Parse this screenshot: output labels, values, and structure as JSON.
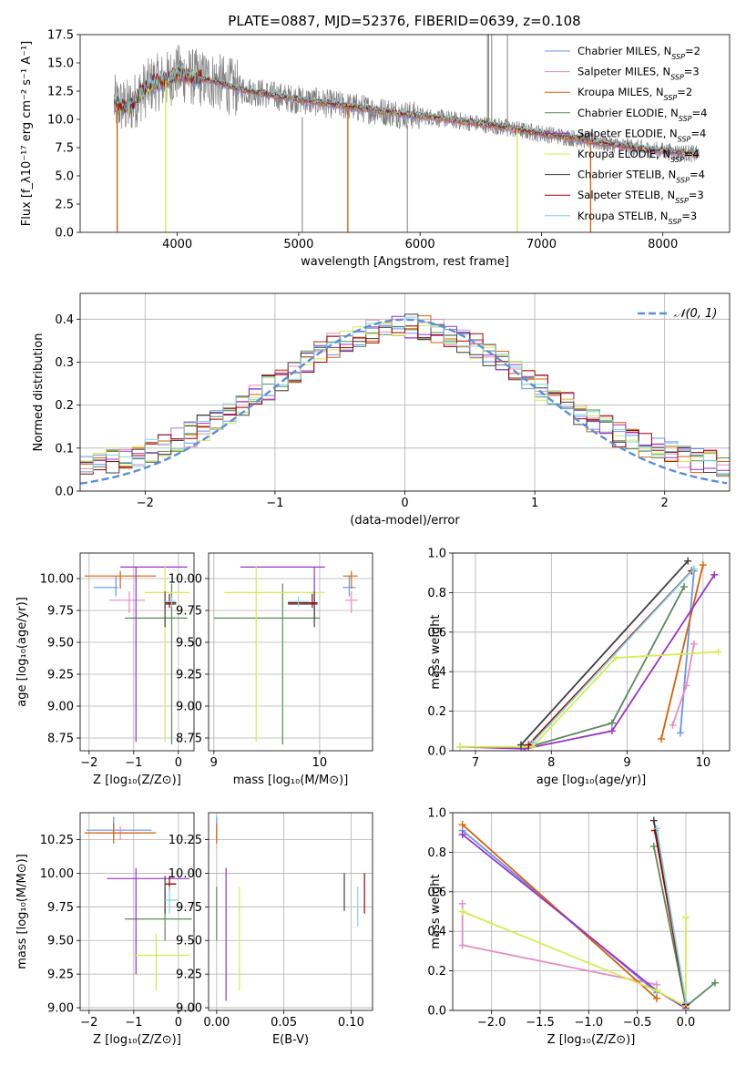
{
  "figure_title": "PLATE=0887, MJD=52376, FIBERID=0639, z=0.108",
  "colors": {
    "Chabrier MILES": "#6495ed",
    "Salpeter MILES": "#e78ac3",
    "Kroupa MILES": "#d95f02",
    "Chabrier ELODIE": "#5a8a5a",
    "Salpeter ELODIE": "#9932cc",
    "Kroupa ELODIE": "#d4ed4c",
    "Chabrier STELIB": "#404040",
    "Salpeter STELIB": "#a00000",
    "Kroupa STELIB": "#7fd6dc",
    "data": "#808080",
    "gauss": "#5b8fd9"
  },
  "legend": [
    {
      "label": "Chabrier MILES, N",
      "sub": "SSP",
      "tail": "=2",
      "series": "Chabrier MILES"
    },
    {
      "label": "Salpeter MILES, N",
      "sub": "SSP",
      "tail": "=3",
      "series": "Salpeter MILES"
    },
    {
      "label": "Kroupa MILES, N",
      "sub": "SSP",
      "tail": "=2",
      "series": "Kroupa MILES"
    },
    {
      "label": "Chabrier ELODIE, N",
      "sub": "SSP",
      "tail": "=4",
      "series": "Chabrier ELODIE"
    },
    {
      "label": "Salpeter ELODIE, N",
      "sub": "SSP",
      "tail": "=4",
      "series": "Salpeter ELODIE"
    },
    {
      "label": "Kroupa ELODIE, N",
      "sub": "SSP",
      "tail": "=4",
      "series": "Kroupa ELODIE"
    },
    {
      "label": "Chabrier STELIB, N",
      "sub": "SSP",
      "tail": "=4",
      "series": "Chabrier STELIB"
    },
    {
      "label": "Salpeter STELIB, N",
      "sub": "SSP",
      "tail": "=3",
      "series": "Salpeter STELIB"
    },
    {
      "label": "Kroupa STELIB, N",
      "sub": "SSP",
      "tail": "=3",
      "series": "Kroupa STELIB"
    }
  ],
  "chart_data": [
    {
      "type": "line",
      "panel": "spectrum",
      "xlabel": "wavelength [Angstrom, rest frame]",
      "ylabel": "Flux [f_λ10⁻¹⁷ erg cm⁻² s⁻¹ A⁻¹]",
      "xlim": [
        3200,
        8550
      ],
      "ylim": [
        0,
        17.5
      ],
      "xticks": [
        4000,
        5000,
        6000,
        7000,
        8000
      ],
      "yticks": [
        0.0,
        2.5,
        5.0,
        7.5,
        10.0,
        12.5,
        15.0,
        17.5
      ],
      "continuum": {
        "x": [
          3480,
          3600,
          3700,
          3800,
          3900,
          4000,
          4100,
          4300,
          4500,
          4700,
          4900,
          5100,
          5300,
          5500,
          5700,
          5900,
          6100,
          6300,
          6500,
          6700,
          6900,
          7100,
          7300,
          7500,
          7700,
          7900,
          8100,
          8300
        ],
        "y": [
          11.4,
          11.0,
          12.3,
          13.2,
          13.4,
          14.1,
          13.8,
          13.4,
          12.7,
          12.3,
          11.9,
          11.6,
          11.3,
          11.0,
          10.7,
          10.4,
          10.2,
          9.9,
          9.6,
          9.3,
          8.9,
          8.6,
          8.3,
          7.9,
          7.6,
          7.3,
          7.1,
          6.9
        ]
      },
      "data_spikes": [
        {
          "x": 3505,
          "y0": 0,
          "y1": 10.5
        },
        {
          "x": 5030,
          "y0": 0,
          "y1": 10.2
        },
        {
          "x": 5895,
          "y0": 0,
          "y1": 9.5
        },
        {
          "x": 6555,
          "y0": 9.5,
          "y1": 17.5
        },
        {
          "x": 6565,
          "y0": 9.5,
          "y1": 17.5
        },
        {
          "x": 6590,
          "y0": 9.5,
          "y1": 17.5
        },
        {
          "x": 6720,
          "y0": 8.5,
          "y1": 17.5
        }
      ],
      "model_dips": [
        {
          "x": 3505,
          "y": 0.0,
          "series": "Kroupa MILES"
        },
        {
          "x": 3905,
          "y": 0.0,
          "series": "Kroupa ELODIE"
        },
        {
          "x": 5405,
          "y": 0.0,
          "series": "Kroupa MILES"
        },
        {
          "x": 6800,
          "y": 0.0,
          "series": "Kroupa ELODIE"
        },
        {
          "x": 7405,
          "y": 0.0,
          "series": "Kroupa MILES"
        }
      ]
    },
    {
      "type": "bar",
      "panel": "residual-histogram",
      "xlabel": "(data-model)/error",
      "ylabel": "Normed distribution",
      "xlim": [
        -2.5,
        2.5
      ],
      "ylim": [
        0,
        0.46
      ],
      "xticks": [
        -2,
        -1,
        0,
        1,
        2
      ],
      "yticks": [
        0.0,
        0.1,
        0.2,
        0.3,
        0.4
      ],
      "gauss_label": "𝒩(0, 1)"
    },
    {
      "type": "scatter",
      "panel": "age-vs-Z",
      "xlabel": "Z [log₁₀(Z/Z⊙)]",
      "ylabel": "age  [log₁₀(age/yr)]",
      "xlim": [
        -2.2,
        0.35
      ],
      "ylim": [
        8.65,
        10.2
      ],
      "xticks": [
        -2,
        -1,
        0
      ],
      "yticks": [
        8.75,
        9.0,
        9.25,
        9.5,
        9.75,
        10.0
      ],
      "crosses": [
        {
          "series": "Chabrier MILES",
          "x": -1.4,
          "xe": [
            -1.9,
            -1.35
          ],
          "y": 9.93,
          "ye": [
            9.86,
            10.02
          ]
        },
        {
          "series": "Salpeter MILES",
          "x": -1.1,
          "xe": [
            -1.55,
            -0.75
          ],
          "y": 9.83,
          "ye": [
            9.73,
            9.9
          ]
        },
        {
          "series": "Kroupa MILES",
          "x": -1.3,
          "xe": [
            -2.1,
            -0.5
          ],
          "y": 10.02,
          "ye": [
            9.92,
            10.06
          ]
        },
        {
          "series": "Chabrier ELODIE",
          "x": -0.15,
          "xe": [
            -1.2,
            0.2
          ],
          "y": 9.69,
          "ye": [
            8.7,
            9.96
          ]
        },
        {
          "series": "Salpeter ELODIE",
          "x": -0.95,
          "xe": [
            -1.3,
            0.2
          ],
          "y": 10.09,
          "ye": [
            8.72,
            10.09
          ]
        },
        {
          "series": "Kroupa ELODIE",
          "x": -0.3,
          "xe": [
            -0.75,
            0.25
          ],
          "y": 9.89,
          "ye": [
            8.72,
            10.1
          ]
        },
        {
          "series": "Chabrier STELIB",
          "x": -0.3,
          "xe": [
            -0.3,
            -0.05
          ],
          "y": 9.8,
          "ye": [
            9.62,
            9.9
          ]
        },
        {
          "series": "Salpeter STELIB",
          "x": -0.2,
          "xe": [
            -0.3,
            -0.05
          ],
          "y": 9.81,
          "ye": [
            9.77,
            9.88
          ]
        },
        {
          "series": "Kroupa STELIB",
          "x": -0.15,
          "xe": [
            -0.3,
            -0.05
          ],
          "y": 9.82,
          "ye": [
            9.78,
            9.86
          ]
        }
      ]
    },
    {
      "type": "scatter",
      "panel": "age-vs-mass",
      "xlabel": "mass [log₁₀(M/M⊙)]",
      "ylabel": "",
      "xlim": [
        8.95,
        10.5
      ],
      "ylim": [
        8.65,
        10.2
      ],
      "xticks": [
        9,
        10
      ],
      "yticks": [
        8.75,
        9.0,
        9.25,
        9.5,
        9.75,
        10.0
      ],
      "crosses": [
        {
          "series": "Chabrier MILES",
          "x": 10.28,
          "xe": [
            10.22,
            10.34
          ],
          "y": 9.93,
          "ye": [
            9.86,
            10.02
          ]
        },
        {
          "series": "Salpeter MILES",
          "x": 10.3,
          "xe": [
            10.24,
            10.36
          ],
          "y": 9.83,
          "ye": [
            9.73,
            9.9
          ]
        },
        {
          "series": "Kroupa MILES",
          "x": 10.3,
          "xe": [
            10.22,
            10.36
          ],
          "y": 10.02,
          "ye": [
            9.92,
            10.06
          ]
        },
        {
          "series": "Chabrier ELODIE",
          "x": 9.65,
          "xe": [
            9.0,
            10.0
          ],
          "y": 9.69,
          "ye": [
            8.7,
            9.96
          ]
        },
        {
          "series": "Salpeter ELODIE",
          "x": 9.95,
          "xe": [
            9.25,
            10.05
          ],
          "y": 10.09,
          "ye": [
            9.7,
            10.09
          ]
        },
        {
          "series": "Kroupa ELODIE",
          "x": 9.4,
          "xe": [
            9.1,
            10.05
          ],
          "y": 9.89,
          "ye": [
            8.72,
            10.1
          ]
        },
        {
          "series": "Chabrier STELIB",
          "x": 9.95,
          "xe": [
            9.7,
            9.98
          ],
          "y": 9.8,
          "ye": [
            9.62,
            9.9
          ]
        },
        {
          "series": "Salpeter STELIB",
          "x": 9.93,
          "xe": [
            9.7,
            9.98
          ],
          "y": 9.81,
          "ye": [
            9.77,
            9.88
          ]
        },
        {
          "series": "Kroupa STELIB",
          "x": 9.8,
          "xe": [
            9.7,
            9.9
          ],
          "y": 9.82,
          "ye": [
            9.78,
            9.86
          ]
        }
      ]
    },
    {
      "type": "line",
      "panel": "mass-weight-vs-age",
      "xlabel": "age  [log₁₀(age/yr)]",
      "ylabel": "mass weight",
      "xlim": [
        6.7,
        10.35
      ],
      "ylim": [
        0,
        1.0
      ],
      "xticks": [
        7,
        8,
        9,
        10
      ],
      "yticks": [
        0.0,
        0.2,
        0.4,
        0.6,
        0.8,
        1.0
      ],
      "series": [
        {
          "name": "Chabrier MILES",
          "x": [
            9.7,
            9.88
          ],
          "y": [
            0.09,
            0.91
          ]
        },
        {
          "name": "Salpeter MILES",
          "x": [
            9.6,
            9.78,
            9.88
          ],
          "y": [
            0.13,
            0.33,
            0.54
          ]
        },
        {
          "name": "Kroupa MILES",
          "x": [
            9.45,
            10.0
          ],
          "y": [
            0.06,
            0.94
          ]
        },
        {
          "name": "Chabrier ELODIE",
          "x": [
            7.6,
            7.7,
            8.8,
            9.75
          ],
          "y": [
            0.02,
            0.02,
            0.14,
            0.83
          ]
        },
        {
          "name": "Salpeter ELODIE",
          "x": [
            6.8,
            7.65,
            8.8,
            10.15
          ],
          "y": [
            0.02,
            0.01,
            0.1,
            0.89
          ]
        },
        {
          "name": "Kroupa ELODIE",
          "x": [
            6.8,
            7.75,
            8.85,
            10.2
          ],
          "y": [
            0.02,
            0.02,
            0.47,
            0.5
          ]
        },
        {
          "name": "Chabrier STELIB",
          "x": [
            7.6,
            9.8
          ],
          "y": [
            0.03,
            0.96
          ]
        },
        {
          "name": "Salpeter STELIB",
          "x": [
            7.7,
            9.85
          ],
          "y": [
            0.03,
            0.91
          ]
        },
        {
          "name": "Kroupa STELIB",
          "x": [
            7.75,
            9.88
          ],
          "y": [
            0.04,
            0.92
          ]
        }
      ]
    },
    {
      "type": "scatter",
      "panel": "mass-vs-Z",
      "xlabel": "Z [log₁₀(Z/Z⊙)]",
      "ylabel": "mass [log₁₀(M/M⊙)]",
      "xlim": [
        -2.2,
        0.35
      ],
      "ylim": [
        8.98,
        10.45
      ],
      "xticks": [
        -2,
        -1,
        0
      ],
      "yticks": [
        9.0,
        9.25,
        9.5,
        9.75,
        10.0,
        10.25
      ],
      "crosses": [
        {
          "series": "Chabrier MILES",
          "x": -1.45,
          "xe": [
            -2.05,
            -0.6
          ],
          "y": 10.32,
          "ye": [
            10.26,
            10.42
          ]
        },
        {
          "series": "Salpeter MILES",
          "x": -1.3,
          "xe": [
            -1.85,
            -0.85
          ],
          "y": 10.3,
          "ye": [
            10.25,
            10.35
          ]
        },
        {
          "series": "Kroupa MILES",
          "x": -1.45,
          "xe": [
            -2.1,
            -0.5
          ],
          "y": 10.3,
          "ye": [
            10.22,
            10.37
          ]
        },
        {
          "series": "Chabrier ELODIE",
          "x": -0.3,
          "xe": [
            -1.2,
            0.3
          ],
          "y": 9.66,
          "ye": [
            9.5,
            9.9
          ]
        },
        {
          "series": "Salpeter ELODIE",
          "x": -0.95,
          "xe": [
            -1.6,
            0.25
          ],
          "y": 9.96,
          "ye": [
            9.25,
            10.04
          ]
        },
        {
          "series": "Kroupa ELODIE",
          "x": -0.5,
          "xe": [
            -1.0,
            0.25
          ],
          "y": 9.39,
          "ye": [
            9.13,
            9.55
          ]
        },
        {
          "series": "Chabrier STELIB",
          "x": -0.3,
          "xe": [
            -0.3,
            -0.05
          ],
          "y": 9.92,
          "ye": [
            9.7,
            9.98
          ]
        },
        {
          "series": "Salpeter STELIB",
          "x": -0.2,
          "xe": [
            -0.3,
            -0.05
          ],
          "y": 9.92,
          "ye": [
            9.87,
            9.98
          ]
        },
        {
          "series": "Kroupa STELIB",
          "x": -0.2,
          "xe": [
            -0.3,
            0.0
          ],
          "y": 9.8,
          "ye": [
            9.7,
            9.9
          ]
        }
      ]
    },
    {
      "type": "scatter",
      "panel": "mass-vs-EBV",
      "xlabel": "E(B-V)",
      "ylabel": "",
      "xlim": [
        -0.006,
        0.116
      ],
      "ylim": [
        8.98,
        10.45
      ],
      "xticks": [
        0.0,
        0.05,
        0.1
      ],
      "yticks": [
        9.0,
        9.25,
        9.5,
        9.75,
        10.0,
        10.25
      ],
      "crosses": [
        {
          "series": "Chabrier MILES",
          "x": 0.0,
          "xe": [
            0.0,
            0.0
          ],
          "y": 10.32,
          "ye": [
            10.26,
            10.42
          ]
        },
        {
          "series": "Salpeter MILES",
          "x": 0.0,
          "xe": [
            0.0,
            0.0
          ],
          "y": 10.3,
          "ye": [
            10.25,
            10.35
          ]
        },
        {
          "series": "Kroupa MILES",
          "x": 0.0,
          "xe": [
            0.0,
            0.0
          ],
          "y": 10.3,
          "ye": [
            10.22,
            10.37
          ]
        },
        {
          "series": "Chabrier ELODIE",
          "x": 0.0,
          "xe": [
            0.0,
            0.0
          ],
          "y": 9.66,
          "ye": [
            9.5,
            9.9
          ]
        },
        {
          "series": "Salpeter ELODIE",
          "x": 0.007,
          "xe": [
            0.007,
            0.007
          ],
          "y": 9.96,
          "ye": [
            9.05,
            10.04
          ]
        },
        {
          "series": "Kroupa ELODIE",
          "x": 0.017,
          "xe": [
            0.017,
            0.017
          ],
          "y": 9.5,
          "ye": [
            9.13,
            9.9
          ]
        },
        {
          "series": "Chabrier STELIB",
          "x": 0.095,
          "xe": [
            0.095,
            0.095
          ],
          "y": 9.92,
          "ye": [
            9.72,
            10.0
          ]
        },
        {
          "series": "Salpeter STELIB",
          "x": 0.11,
          "xe": [
            0.11,
            0.11
          ],
          "y": 9.92,
          "ye": [
            9.7,
            10.0
          ]
        },
        {
          "series": "Kroupa STELIB",
          "x": 0.105,
          "xe": [
            0.105,
            0.105
          ],
          "y": 9.8,
          "ye": [
            9.6,
            9.9
          ]
        }
      ]
    },
    {
      "type": "line",
      "panel": "mass-weight-vs-Z",
      "xlabel": "Z [log₁₀(Z/Z⊙)]",
      "ylabel": "mass weight",
      "xlim": [
        -2.4,
        0.45
      ],
      "ylim": [
        0,
        1.0
      ],
      "xticks": [
        -2.0,
        -1.5,
        -1.0,
        -0.5,
        0.0
      ],
      "yticks": [
        0.0,
        0.2,
        0.4,
        0.6,
        0.8,
        1.0
      ],
      "series": [
        {
          "name": "Chabrier MILES",
          "x": [
            -2.3,
            -0.3
          ],
          "y": [
            0.91,
            0.09
          ]
        },
        {
          "name": "Salpeter MILES",
          "x": [
            -2.3,
            -2.3,
            -0.3
          ],
          "y": [
            0.54,
            0.33,
            0.13
          ]
        },
        {
          "name": "Kroupa MILES",
          "x": [
            -2.3,
            -0.3
          ],
          "y": [
            0.94,
            0.06
          ]
        },
        {
          "name": "Chabrier ELODIE",
          "x": [
            -0.33,
            0.0,
            0.0,
            0.3
          ],
          "y": [
            0.83,
            0.02,
            0.02,
            0.14
          ]
        },
        {
          "name": "Salpeter ELODIE",
          "x": [
            -2.3,
            -0.3,
            0.0,
            0.0
          ],
          "y": [
            0.89,
            0.1,
            0.01,
            0.02
          ]
        },
        {
          "name": "Kroupa ELODIE",
          "x": [
            -2.3,
            -0.3,
            0.0,
            0.0
          ],
          "y": [
            0.5,
            0.1,
            0.02,
            0.47
          ]
        },
        {
          "name": "Chabrier STELIB",
          "x": [
            -0.33,
            0.0
          ],
          "y": [
            0.96,
            0.03
          ]
        },
        {
          "name": "Salpeter STELIB",
          "x": [
            -0.32,
            0.0
          ],
          "y": [
            0.91,
            0.03
          ]
        },
        {
          "name": "Kroupa STELIB",
          "x": [
            -0.3,
            0.0
          ],
          "y": [
            0.92,
            0.04
          ]
        }
      ]
    }
  ]
}
